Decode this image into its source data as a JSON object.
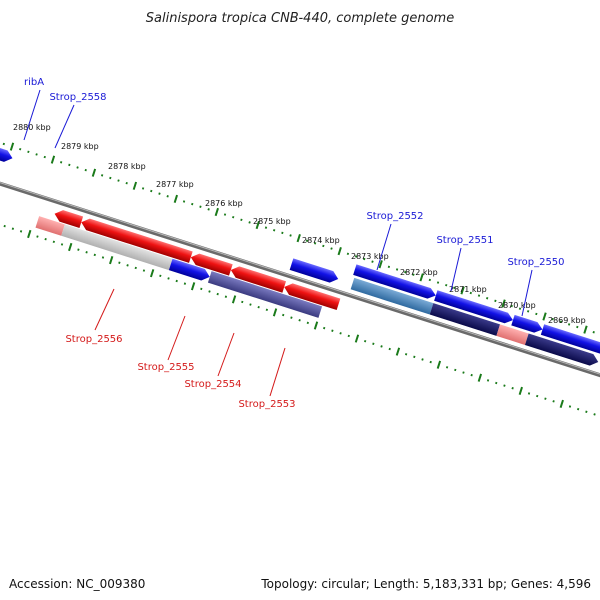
{
  "title": "Salinispora tropica CNB-440, complete genome",
  "ticks": [
    "2880 kbp",
    "2879 kbp",
    "2878 kbp",
    "2877 kbp",
    "2876 kbp",
    "2875 kbp",
    "2874 kbp",
    "2873 kbp",
    "2872 kbp",
    "2871 kbp",
    "2870 kbp",
    "2869 kbp"
  ],
  "labels_forward": [
    "ribA",
    "Strop_2558",
    "Strop_2552",
    "Strop_2551",
    "Strop_2550"
  ],
  "labels_reverse": [
    "Strop_2556",
    "Strop_2555",
    "Strop_2554",
    "Strop_2553"
  ],
  "footer": {
    "accession": "Accession: NC_009380",
    "summary": "Topology: circular; Length: 5,183,331 bp; Genes: 4,596"
  },
  "colors": {
    "forward_gene": "#1010e0",
    "reverse_gene": "#e81010",
    "tick": "#1a7a1a",
    "backbone": "#8a8a8a"
  }
}
